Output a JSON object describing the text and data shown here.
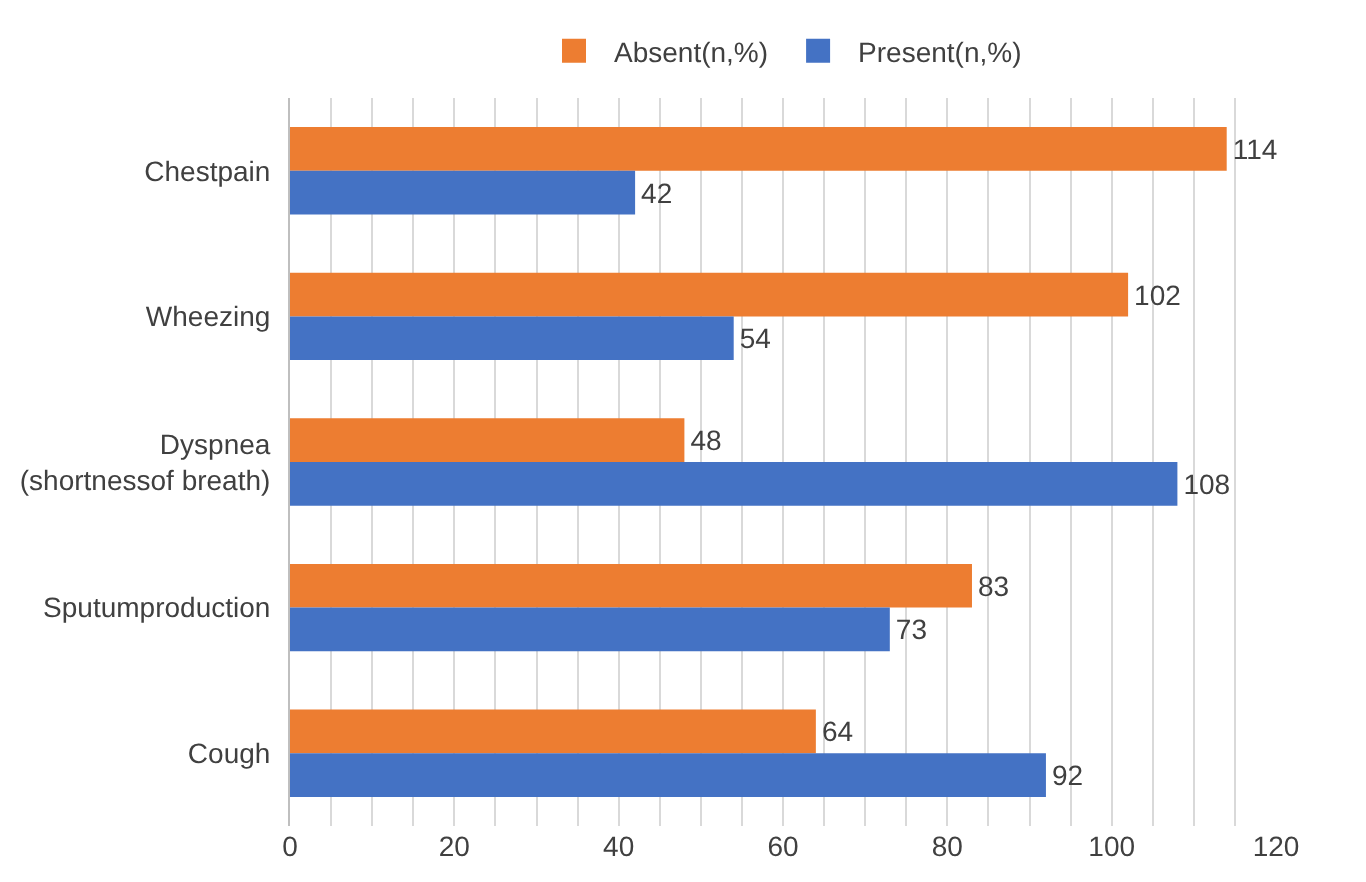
{
  "chart_data": {
    "type": "bar",
    "orientation": "horizontal",
    "categories": [
      "Chestpain",
      "Wheezing",
      "Dyspnea\n(shortnessof breath)",
      "Sputumproduction",
      "Cough"
    ],
    "series": [
      {
        "name": "Absent(n,%)",
        "color": "#ed7d31",
        "values": [
          114,
          102,
          48,
          83,
          64
        ]
      },
      {
        "name": "Present(n,%)",
        "color": "#4472c4",
        "values": [
          42,
          54,
          108,
          73,
          92
        ]
      }
    ],
    "xlim": [
      0,
      120
    ],
    "xticks": [
      0,
      {
        "value": 5,
        "label": null
      },
      {
        "value": 10,
        "label": null
      },
      {
        "value": 15,
        "label": null
      },
      20,
      {
        "value": 25,
        "label": null
      },
      {
        "value": 30,
        "label": null
      },
      {
        "value": 35,
        "label": null
      },
      40,
      {
        "value": 45,
        "label": null
      },
      {
        "value": 50,
        "label": null
      },
      {
        "value": 55,
        "label": null
      },
      60,
      {
        "value": 65,
        "label": null
      },
      {
        "value": 70,
        "label": null
      },
      {
        "value": 75,
        "label": null
      },
      80,
      {
        "value": 85,
        "label": null
      },
      {
        "value": 90,
        "label": null
      },
      {
        "value": 95,
        "label": null
      },
      100,
      {
        "value": 105,
        "label": null
      },
      {
        "value": 110,
        "label": null
      },
      {
        "value": 115,
        "label": null
      },
      120
    ],
    "grid": "x",
    "legend": "top",
    "data_labels": true
  }
}
